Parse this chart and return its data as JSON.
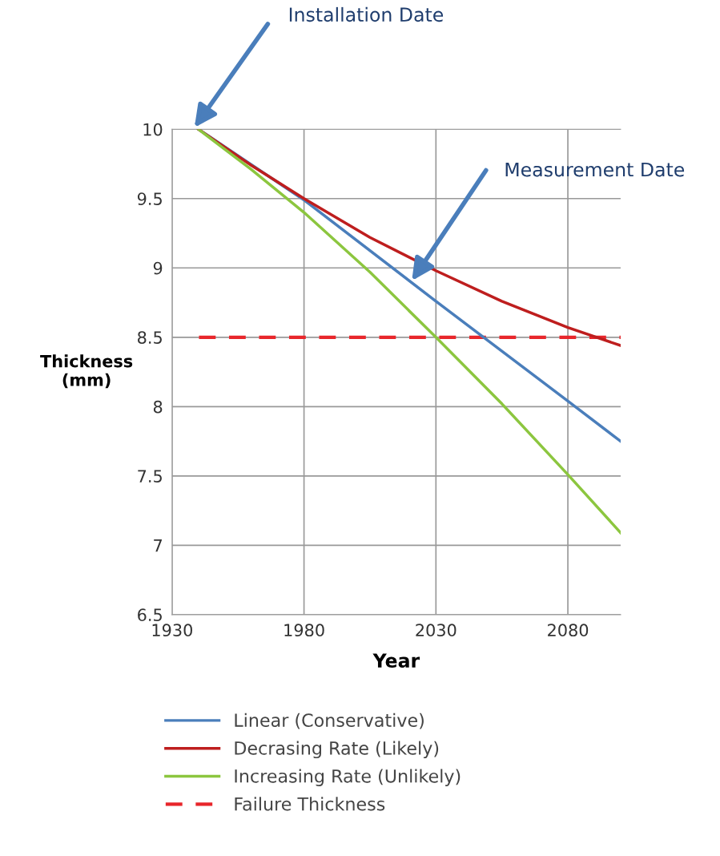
{
  "chart_data": {
    "type": "line",
    "xlabel": "Year",
    "ylabel": "Thickness\n(mm)",
    "xlim": [
      1930,
      2100
    ],
    "xticks": [
      1930,
      1980,
      2030,
      2080
    ],
    "ylim": [
      6.5,
      10
    ],
    "yticks": [
      6.5,
      7,
      7.5,
      8,
      8.5,
      9,
      9.5,
      10
    ],
    "grid": true,
    "legend": "bottom",
    "line_style": "solid",
    "marker": "none",
    "series": [
      {
        "name": "Linear (Conservative)",
        "color": "#4a7ebb",
        "x": [
          1940,
          1980,
          2030,
          2080,
          2100
        ],
        "values": [
          10,
          9.49,
          8.76,
          8.04,
          7.75
        ]
      },
      {
        "name": "Decrasing Rate (Likely)",
        "color": "#be1e1e",
        "x": [
          1940,
          1960,
          1980,
          2005,
          2030,
          2055,
          2080,
          2100
        ],
        "values": [
          10,
          9.74,
          9.5,
          9.22,
          8.98,
          8.76,
          8.57,
          8.44
        ]
      },
      {
        "name": "Increasing Rate (Unlikely)",
        "color": "#8cc63f",
        "x": [
          1940,
          1960,
          1980,
          2005,
          2030,
          2055,
          2080,
          2100
        ],
        "values": [
          10,
          9.71,
          9.4,
          8.97,
          8.5,
          8.02,
          7.51,
          7.09
        ]
      }
    ],
    "ref_lines": [
      {
        "axis": "y",
        "value": 8.5,
        "label": "Failure Thickness",
        "color": "#e8262b",
        "line_style": "dashed"
      }
    ],
    "annotations": [
      "Installation Date",
      "Measurement Date"
    ]
  }
}
